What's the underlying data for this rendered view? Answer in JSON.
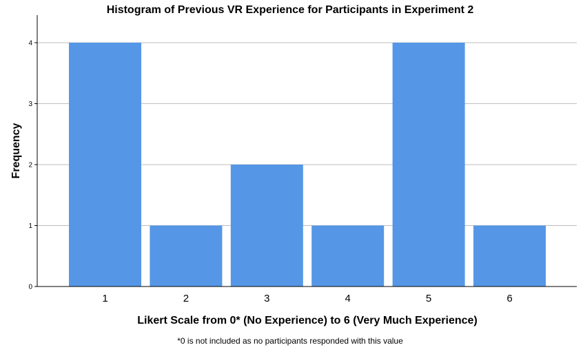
{
  "chart_data": {
    "type": "bar",
    "title": "Histogram of Previous VR Experience for Participants in Experiment 2",
    "xlabel": "Likert Scale from 0* (No Experience) to 6 (Very Much Experience)",
    "ylabel": "Frequency",
    "categories": [
      "1",
      "2",
      "3",
      "4",
      "5",
      "6"
    ],
    "values": [
      4,
      1,
      2,
      1,
      4,
      1
    ],
    "yticks": [
      "0",
      "1",
      "2",
      "3",
      "4"
    ],
    "ylim": [
      0,
      4.45
    ],
    "grid": true,
    "bar_color": "#5597e6",
    "footnote": "*0 is not included as no participants responded with this value"
  }
}
